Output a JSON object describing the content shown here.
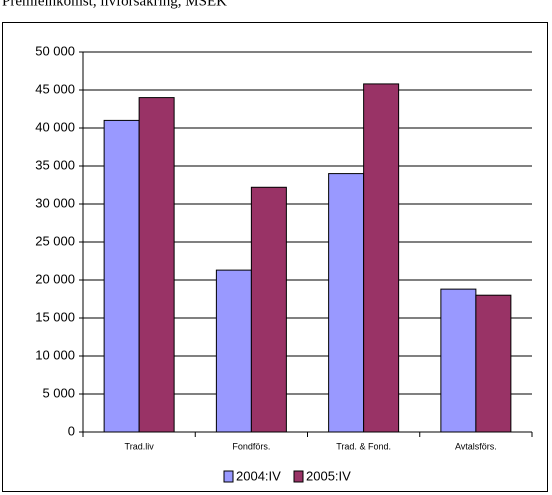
{
  "chart_data": {
    "type": "bar",
    "title": "Premieinkomst, livförsäkring, MSEK",
    "categories": [
      "Trad.liv",
      "Fondförs.",
      "Trad. & Fond.",
      "Avtalsförs."
    ],
    "series": [
      {
        "name": "2004:IV",
        "color": "#9999ff",
        "values": [
          41000,
          21300,
          34000,
          18800
        ]
      },
      {
        "name": "2005:IV",
        "color": "#993366",
        "values": [
          44000,
          32200,
          45800,
          18000
        ]
      }
    ],
    "ylim": [
      0,
      50000
    ],
    "yticks": [
      0,
      {
        "value": 5000,
        "label": "5 000"
      },
      {
        "value": 10000,
        "label": "10 000"
      },
      {
        "value": 15000,
        "label": "15 000"
      },
      {
        "value": 20000,
        "label": "20 000"
      },
      {
        "value": 25000,
        "label": "25 000"
      },
      {
        "value": 30000,
        "label": "30 000"
      },
      {
        "value": 35000,
        "label": "35 000"
      },
      {
        "value": 40000,
        "label": "40 000"
      },
      {
        "value": 45000,
        "label": "45 000"
      },
      {
        "value": 50000,
        "label": "50 000"
      }
    ],
    "grid": true,
    "legend": "bottom"
  }
}
